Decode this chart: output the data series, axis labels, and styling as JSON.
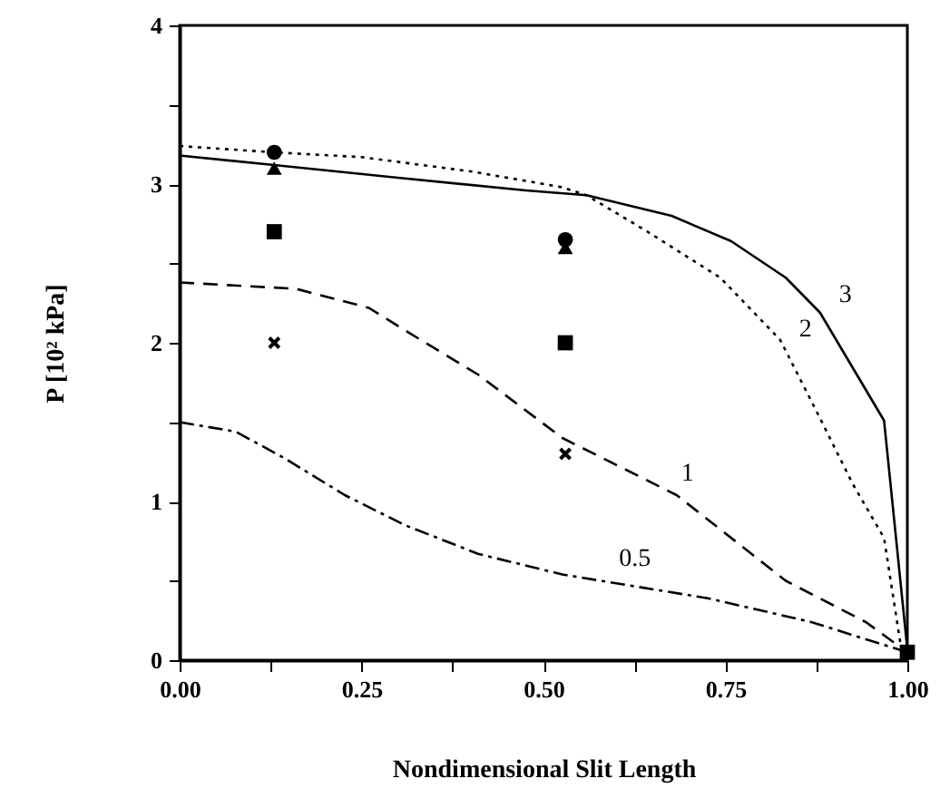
{
  "chart_data": {
    "type": "line",
    "xlabel": "Nondimensional Slit Length",
    "ylabel": "P [10² kPa]",
    "xlim": [
      0,
      1
    ],
    "ylim": [
      0,
      4
    ],
    "xticks": [
      {
        "value": 0,
        "label": "0.00"
      },
      {
        "value": 0.125,
        "label": null
      },
      {
        "value": 0.25,
        "label": "0.25"
      },
      {
        "value": 0.375,
        "label": null
      },
      {
        "value": 0.5,
        "label": "0.50"
      },
      {
        "value": 0.625,
        "label": null
      },
      {
        "value": 0.75,
        "label": "0.75"
      },
      {
        "value": 0.875,
        "label": null
      },
      {
        "value": 1,
        "label": "1.00"
      }
    ],
    "yticks": [
      0,
      {
        "value": 0.5,
        "label": null
      },
      1,
      {
        "value": 1.5,
        "label": null
      },
      2,
      {
        "value": 2.5,
        "label": null
      },
      3,
      {
        "value": 3.5,
        "label": null
      },
      4
    ],
    "grid": false,
    "series": [
      {
        "name": "3",
        "color": "#000000",
        "line_style": "solid",
        "marker": "none",
        "x": [
          0,
          0.13,
          0.3,
          0.476,
          0.559,
          0.676,
          0.758,
          0.833,
          0.88,
          0.968,
          1.0
        ],
        "values": [
          3.18,
          3.12,
          3.04,
          2.96,
          2.93,
          2.8,
          2.64,
          2.41,
          2.19,
          1.51,
          0.07
        ]
      },
      {
        "name": "2",
        "color": "#000000",
        "line_style": "dotted",
        "marker": "none",
        "x": [
          0,
          0.13,
          0.25,
          0.4,
          0.526,
          0.559,
          0.643,
          0.743,
          0.825,
          0.875,
          0.925,
          0.968,
          0.99,
          1.0
        ],
        "values": [
          3.24,
          3.2,
          3.17,
          3.08,
          2.98,
          2.93,
          2.7,
          2.41,
          2.02,
          1.57,
          1.11,
          0.77,
          0.12,
          0.05
        ]
      },
      {
        "name": "1",
        "color": "#000000",
        "line_style": "dashed",
        "marker": "none",
        "x": [
          0,
          0.16,
          0.26,
          0.327,
          0.41,
          0.526,
          0.683,
          0.833,
          0.943,
          1.0
        ],
        "values": [
          2.38,
          2.34,
          2.22,
          2.03,
          1.8,
          1.4,
          1.04,
          0.5,
          0.24,
          0.05
        ]
      },
      {
        "name": "0.5",
        "color": "#000000",
        "line_style": "dashdot",
        "marker": "none",
        "x": [
          0,
          0.077,
          0.145,
          0.227,
          0.31,
          0.41,
          0.526,
          0.726,
          0.868,
          1.0
        ],
        "values": [
          1.5,
          1.44,
          1.27,
          1.04,
          0.85,
          0.67,
          0.54,
          0.39,
          0.24,
          0.05
        ]
      },
      {
        "type": "scatter",
        "color": "#000000",
        "marker": "circle",
        "x": [
          0.13,
          0.53
        ],
        "values": [
          3.2,
          2.65
        ]
      },
      {
        "type": "scatter",
        "color": "#000000",
        "marker": "triangle",
        "x": [
          0.13,
          0.53
        ],
        "values": [
          3.1,
          2.6
        ]
      },
      {
        "type": "scatter",
        "color": "#000000",
        "marker": "square",
        "x": [
          0.13,
          0.53,
          1.0
        ],
        "values": [
          2.7,
          2.0,
          0.05
        ]
      },
      {
        "type": "scatter",
        "color": "#000000",
        "marker": "cross",
        "x": [
          0.13,
          0.53
        ],
        "values": [
          2.0,
          1.3
        ]
      }
    ]
  }
}
